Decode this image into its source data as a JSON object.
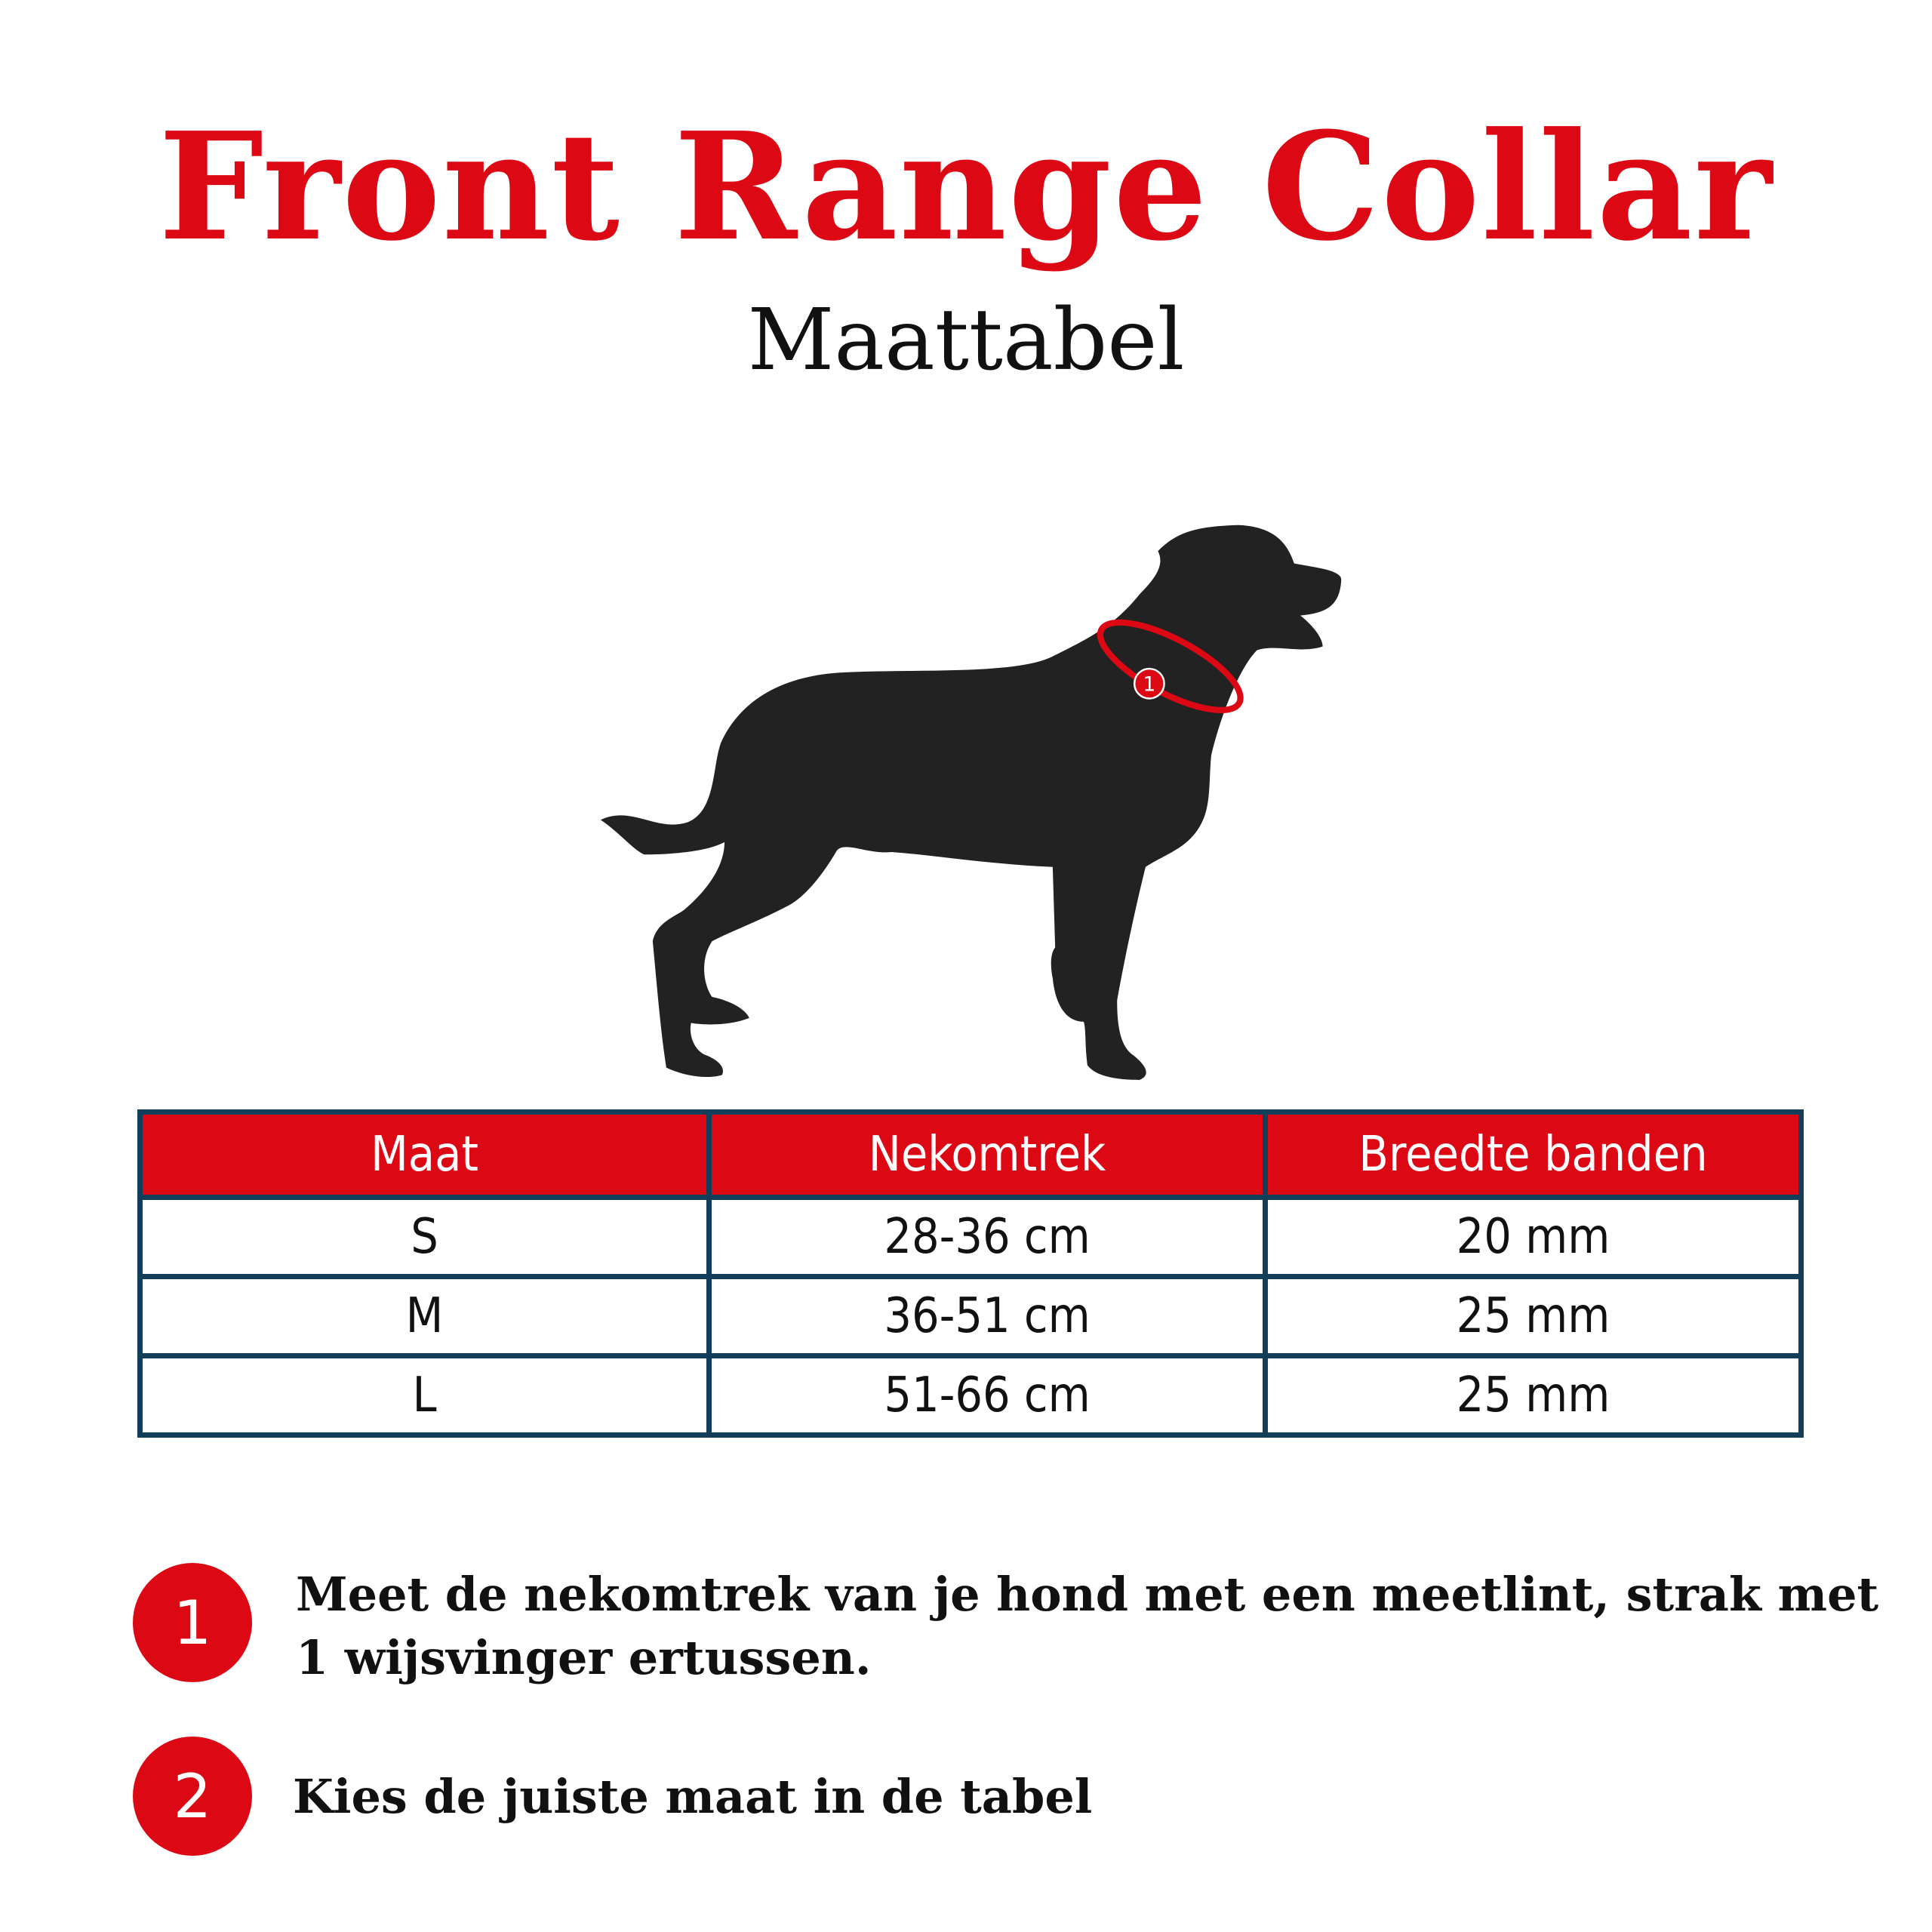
{
  "title": "Front Range Collar",
  "subtitle": "Maattabel",
  "colors": {
    "accent": "#dc0814",
    "table_border": "#123e5a",
    "dog": "#222222"
  },
  "illustration": {
    "subject": "dog-silhouette",
    "collar_marker": "1"
  },
  "table": {
    "headers": [
      "Maat",
      "Nekomtrek",
      "Breedte banden"
    ],
    "rows": [
      [
        "S",
        "28-36 cm",
        "20 mm"
      ],
      [
        "M",
        "36-51 cm",
        "25 mm"
      ],
      [
        "L",
        "51-66 cm",
        "25 mm"
      ]
    ]
  },
  "steps": [
    {
      "number": "1",
      "text": "Meet de nekomtrek van je hond met een meetlint, strak met 1 wijsvinger ertussen."
    },
    {
      "number": "2",
      "text": "Kies de juiste maat in de tabel"
    }
  ]
}
